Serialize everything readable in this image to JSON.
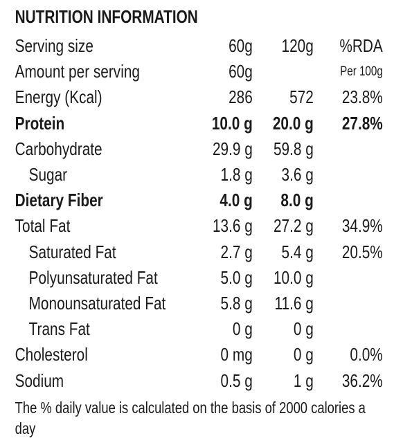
{
  "title": "NUTRITION INFORMATION",
  "table": {
    "rows": [
      [
        "Serving size",
        "60g",
        "120g",
        "%RDA"
      ],
      [
        "Amount per serving",
        "60g",
        null,
        "Per 100g"
      ],
      [
        "Energy (Kcal)",
        "286",
        "572",
        "23.8%"
      ],
      [
        "Protein",
        "10.0 g",
        "20.0 g",
        "27.8%"
      ],
      [
        "Carbohydrate",
        "29.9 g",
        "59.8 g",
        null
      ],
      [
        "Sugar",
        "1.8 g",
        "3.6 g",
        null
      ],
      [
        "Dietary Fiber",
        "4.0 g",
        "8.0 g",
        null
      ],
      [
        "Total Fat",
        "13.6 g",
        "27.2 g",
        "34.9%"
      ],
      [
        "Saturated Fat",
        "2.7 g",
        "5.4 g",
        "20.5%"
      ],
      [
        "Polyunsaturated Fat",
        "5.0 g",
        "10.0 g",
        null
      ],
      [
        "Monounsaturated Fat",
        "5.8 g",
        "11.6 g",
        null
      ],
      [
        "Trans Fat",
        "0 g",
        "0 g",
        null
      ],
      [
        "Cholesterol",
        "0 mg",
        "0 g",
        "0.0%"
      ],
      [
        "Sodium",
        "0.5 g",
        "1 g",
        "36.2%"
      ]
    ]
  },
  "footer": "The % daily value is calculated on the basis of 2000 calories a day"
}
